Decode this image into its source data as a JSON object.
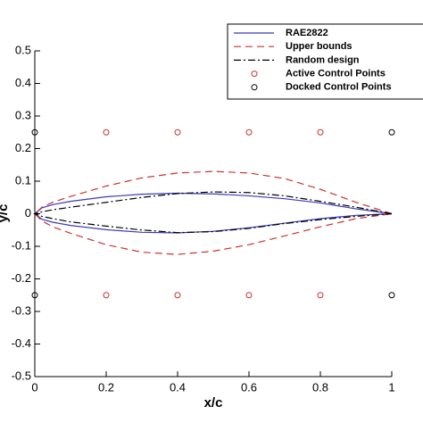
{
  "chart_data": {
    "type": "line",
    "xlabel": "x/c",
    "ylabel": "y/c",
    "xlim": [
      0,
      1
    ],
    "ylim": [
      -0.5,
      0.5
    ],
    "xticks": [
      0,
      0.2,
      0.4,
      0.6,
      0.8,
      1
    ],
    "yticks": [
      -0.5,
      -0.4,
      -0.3,
      -0.2,
      -0.1,
      0,
      0.1,
      0.2,
      0.3,
      0.4,
      0.5
    ],
    "legend": "upper right",
    "series": [
      {
        "name": "RAE2822",
        "color": "#3b3bb8",
        "style": "solid",
        "x": [
          1,
          0.9,
          0.8,
          0.7,
          0.6,
          0.5,
          0.4,
          0.3,
          0.2,
          0.1,
          0.05,
          0.02,
          0,
          0.02,
          0.05,
          0.1,
          0.2,
          0.3,
          0.4,
          0.5,
          0.6,
          0.7,
          0.8,
          0.9,
          1
        ],
        "values": [
          0,
          0.015,
          0.033,
          0.046,
          0.055,
          0.061,
          0.063,
          0.06,
          0.052,
          0.038,
          0.028,
          0.018,
          0,
          -0.017,
          -0.026,
          -0.036,
          -0.049,
          -0.057,
          -0.059,
          -0.054,
          -0.043,
          -0.029,
          -0.015,
          -0.005,
          0
        ]
      },
      {
        "name": "Upper bounds",
        "color": "#c83232",
        "style": "dashed",
        "x": [
          1,
          0.9,
          0.8,
          0.7,
          0.6,
          0.5,
          0.4,
          0.3,
          0.2,
          0.1,
          0.05,
          0.02,
          0,
          0.02,
          0.05,
          0.1,
          0.2,
          0.3,
          0.4,
          0.5,
          0.6,
          0.7,
          0.8,
          0.9,
          1
        ],
        "values": [
          0,
          0.035,
          0.075,
          0.108,
          0.125,
          0.13,
          0.125,
          0.11,
          0.085,
          0.053,
          0.035,
          0.02,
          0,
          -0.022,
          -0.04,
          -0.06,
          -0.095,
          -0.118,
          -0.125,
          -0.115,
          -0.095,
          -0.068,
          -0.04,
          -0.015,
          0
        ]
      },
      {
        "name": "Random design",
        "color": "#000000",
        "style": "dashdot",
        "x": [
          1,
          0.9,
          0.8,
          0.7,
          0.6,
          0.5,
          0.4,
          0.3,
          0.2,
          0.1,
          0.05,
          0.02,
          0,
          0.02,
          0.05,
          0.1,
          0.2,
          0.3,
          0.4,
          0.5,
          0.6,
          0.7,
          0.8,
          0.9,
          1
        ],
        "values": [
          0,
          0.02,
          0.038,
          0.055,
          0.065,
          0.067,
          0.062,
          0.05,
          0.035,
          0.02,
          0.012,
          0.006,
          0,
          -0.008,
          -0.015,
          -0.025,
          -0.038,
          -0.05,
          -0.058,
          -0.055,
          -0.045,
          -0.03,
          -0.018,
          -0.008,
          0
        ]
      },
      {
        "name": "Active Control Points",
        "color": "#c83232",
        "style": "marker",
        "x": [
          0.2,
          0.4,
          0.6,
          0.8,
          0.2,
          0.4,
          0.6,
          0.8
        ],
        "values": [
          0.25,
          0.25,
          0.25,
          0.25,
          -0.25,
          -0.25,
          -0.25,
          -0.25
        ]
      },
      {
        "name": "Docked Control Points",
        "color": "#000000",
        "style": "marker",
        "x": [
          0,
          1,
          0,
          1
        ],
        "values": [
          0.25,
          0.25,
          -0.25,
          -0.25
        ]
      }
    ]
  }
}
